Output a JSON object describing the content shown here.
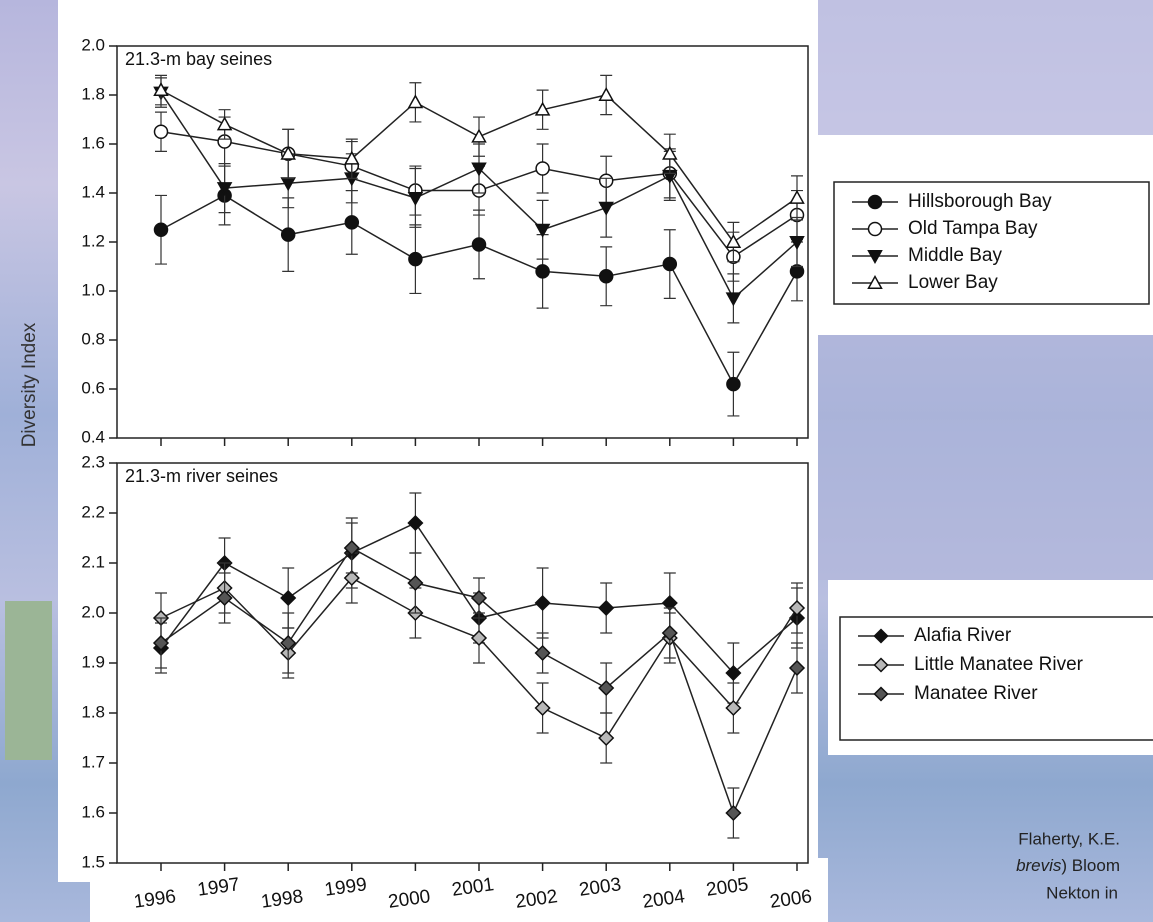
{
  "ylabel": "Diversity Index",
  "citation": {
    "line1": "Flaherty, K.E.",
    "line2_italic": "brevis",
    "line2": ") Bloom",
    "line3": "Nekton in"
  },
  "chart_data": [
    {
      "type": "line",
      "panel_label": "21.3-m bay seines",
      "ylim": [
        0.4,
        2.0
      ],
      "yticks": [
        0.4,
        0.6,
        0.8,
        {
          "value": 1,
          "label": "1.0"
        },
        1.2,
        1.4,
        1.6,
        1.8,
        {
          "value": 2,
          "label": "2.0"
        }
      ],
      "series": [
        {
          "name": "Hillsborough Bay",
          "marker": "circle",
          "color": "#111111",
          "values": [
            1.25,
            1.39,
            1.23,
            1.28,
            1.13,
            1.19,
            1.08,
            1.06,
            1.11,
            0.62,
            1.08
          ],
          "errors": [
            0.14,
            0.12,
            0.15,
            0.13,
            0.14,
            0.14,
            0.15,
            0.12,
            0.14,
            0.13,
            0.12
          ]
        },
        {
          "name": "Old Tampa Bay",
          "marker": "circle",
          "color": "#ffffff",
          "values": [
            1.65,
            1.61,
            1.56,
            1.51,
            1.41,
            1.41,
            1.5,
            1.45,
            1.48,
            1.14,
            1.31
          ],
          "errors": [
            0.08,
            0.1,
            0.1,
            0.1,
            0.1,
            0.1,
            0.1,
            0.1,
            0.1,
            0.1,
            0.1
          ]
        },
        {
          "name": "Middle Bay",
          "marker": "triangle-down",
          "color": "#111111",
          "values": [
            1.81,
            1.42,
            1.44,
            1.46,
            1.38,
            1.5,
            1.25,
            1.34,
            1.47,
            0.97,
            1.2
          ],
          "errors": [
            0.06,
            0.1,
            0.1,
            0.1,
            0.12,
            0.1,
            0.12,
            0.12,
            0.1,
            0.1,
            0.1
          ]
        },
        {
          "name": "Lower Bay",
          "marker": "triangle-up",
          "color": "#ffffff",
          "values": [
            1.82,
            1.68,
            1.56,
            1.54,
            1.77,
            1.63,
            1.74,
            1.8,
            1.56,
            1.2,
            1.38
          ],
          "errors": [
            0.06,
            0.06,
            0.1,
            0.08,
            0.08,
            0.08,
            0.08,
            0.08,
            0.08,
            0.08,
            0.09
          ]
        }
      ]
    },
    {
      "type": "line",
      "panel_label": "21.3-m river seines",
      "categories": [
        "1996",
        "1997",
        "1998",
        "1999",
        "2000",
        "2001",
        "2002",
        "2003",
        "2004",
        "2005",
        "2006"
      ],
      "ylim": [
        1.5,
        2.3
      ],
      "yticks": [
        1.5,
        1.6,
        1.7,
        1.8,
        1.9,
        {
          "value": 2,
          "label": "2.0"
        },
        2.1,
        2.2,
        2.3
      ],
      "series": [
        {
          "name": "Alafia River",
          "marker": "diamond",
          "color": "#111111",
          "values": [
            1.93,
            2.1,
            2.03,
            2.12,
            2.18,
            1.99,
            2.02,
            2.01,
            2.02,
            1.88,
            1.99
          ],
          "errors": [
            0.05,
            0.05,
            0.06,
            0.07,
            0.06,
            0.05,
            0.07,
            0.05,
            0.06,
            0.06,
            0.06
          ]
        },
        {
          "name": "Little Manatee River",
          "marker": "diamond",
          "color": "#b8b8b8",
          "values": [
            1.99,
            2.05,
            1.92,
            2.07,
            2.0,
            1.95,
            1.81,
            1.75,
            1.95,
            1.81,
            2.01
          ],
          "errors": [
            0.05,
            0.05,
            0.05,
            0.05,
            0.05,
            0.05,
            0.05,
            0.05,
            0.05,
            0.05,
            0.05
          ]
        },
        {
          "name": "Manatee River",
          "marker": "diamond",
          "color": "#555555",
          "values": [
            1.94,
            2.03,
            1.94,
            2.13,
            2.06,
            2.03,
            1.92,
            1.85,
            1.96,
            1.6,
            1.89
          ],
          "errors": [
            0.05,
            0.05,
            0.06,
            0.05,
            0.06,
            0.04,
            0.04,
            0.05,
            0.05,
            0.05,
            0.05
          ]
        }
      ]
    }
  ]
}
